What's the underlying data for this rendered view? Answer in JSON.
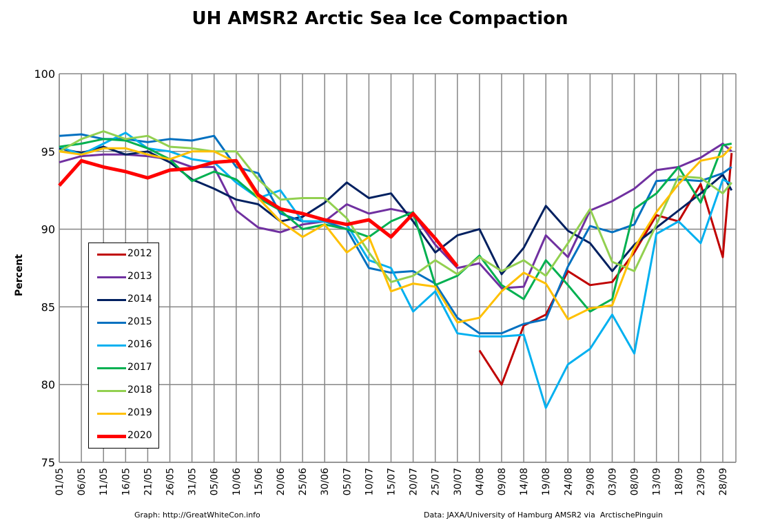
{
  "chart_data": {
    "type": "line",
    "title": "UH AMSR2 Arctic Sea Ice Compaction",
    "ylabel": "Percent",
    "xlabel": "",
    "ylim": [
      75,
      100
    ],
    "yticks": [
      75,
      80,
      85,
      90,
      95,
      100
    ],
    "xticks": [
      "01/05",
      "06/05",
      "11/05",
      "16/05",
      "21/05",
      "26/05",
      "31/05",
      "05/06",
      "10/06",
      "15/06",
      "20/06",
      "25/06",
      "30/06",
      "05/07",
      "10/07",
      "15/07",
      "20/07",
      "25/07",
      "30/07",
      "04/08",
      "09/08",
      "14/08",
      "19/08",
      "24/08",
      "29/08",
      "03/09",
      "08/09",
      "13/09",
      "18/09",
      "23/09",
      "28/09"
    ],
    "grid": true,
    "legend_position": "left",
    "x": [
      "01/05",
      "06/05",
      "11/05",
      "16/05",
      "21/05",
      "26/05",
      "31/05",
      "05/06",
      "10/06",
      "15/06",
      "20/06",
      "25/06",
      "30/06",
      "05/07",
      "10/07",
      "15/07",
      "20/07",
      "25/07",
      "30/07",
      "04/08",
      "09/08",
      "14/08",
      "19/08",
      "24/08",
      "29/08",
      "03/09",
      "08/09",
      "13/09",
      "18/09",
      "23/09",
      "28/09",
      "30/09"
    ],
    "series": [
      {
        "name": "2012",
        "color": "#C00000",
        "values": [
          null,
          null,
          null,
          null,
          null,
          null,
          null,
          null,
          null,
          null,
          null,
          null,
          null,
          null,
          null,
          null,
          null,
          null,
          null,
          82.2,
          80.0,
          83.8,
          84.5,
          87.3,
          86.4,
          86.6,
          88.5,
          90.9,
          90.5,
          92.9,
          88.2,
          94.9
        ]
      },
      {
        "name": "2013",
        "color": "#7030A0",
        "values": [
          94.3,
          94.7,
          94.8,
          94.8,
          94.7,
          94.5,
          94.0,
          94.0,
          91.2,
          90.1,
          89.8,
          90.3,
          90.5,
          91.6,
          91.0,
          91.3,
          91.0,
          89.0,
          87.5,
          87.8,
          86.2,
          86.3,
          89.6,
          88.2,
          91.2,
          91.8,
          92.6,
          93.8,
          94.0,
          94.6,
          95.5,
          95.0
        ]
      },
      {
        "name": "2014",
        "color": "#002060",
        "values": [
          95.2,
          94.9,
          95.3,
          94.8,
          95.0,
          94.3,
          93.2,
          92.6,
          91.9,
          91.6,
          90.5,
          90.8,
          91.7,
          93.0,
          92.0,
          92.3,
          90.5,
          88.5,
          89.6,
          90.0,
          87.1,
          88.8,
          91.5,
          89.9,
          89.1,
          87.3,
          89.0,
          90.1,
          91.2,
          92.3,
          93.5,
          92.5
        ]
      },
      {
        "name": "2015",
        "color": "#0070C0",
        "values": [
          96.0,
          96.1,
          95.8,
          95.8,
          95.6,
          95.8,
          95.7,
          96.0,
          94.0,
          93.6,
          91.0,
          90.5,
          90.5,
          90.0,
          87.5,
          87.2,
          87.3,
          86.5,
          84.3,
          83.3,
          83.3,
          83.9,
          84.2,
          87.6,
          90.2,
          89.8,
          90.3,
          93.1,
          93.2,
          93.1,
          93.6,
          94.0
        ]
      },
      {
        "name": "2016",
        "color": "#00B0F0",
        "values": [
          95.3,
          94.8,
          95.5,
          96.2,
          95.2,
          95.0,
          94.5,
          94.3,
          93.0,
          92.0,
          92.5,
          90.5,
          90.5,
          90.3,
          88.0,
          87.5,
          84.7,
          86.0,
          83.3,
          83.1,
          83.1,
          83.2,
          78.5,
          81.3,
          82.3,
          84.5,
          82.0,
          89.7,
          90.5,
          89.1,
          93.2,
          92.9
        ]
      },
      {
        "name": "2017",
        "color": "#00B050",
        "values": [
          95.3,
          95.5,
          95.8,
          95.7,
          95.2,
          94.5,
          93.1,
          93.7,
          93.2,
          92.0,
          91.2,
          90.0,
          90.3,
          90.0,
          89.5,
          90.5,
          91.1,
          86.4,
          87.0,
          88.3,
          86.4,
          85.5,
          88.0,
          86.4,
          84.7,
          85.5,
          91.3,
          92.3,
          94.0,
          91.7,
          95.4,
          95.5
        ]
      },
      {
        "name": "2018",
        "color": "#92D050",
        "values": [
          95.0,
          95.8,
          96.3,
          95.8,
          96.0,
          95.3,
          95.2,
          95.0,
          95.0,
          93.2,
          91.9,
          92.0,
          92.0,
          90.7,
          88.5,
          86.6,
          87.0,
          88.0,
          87.1,
          88.2,
          87.3,
          88.0,
          87.0,
          89.1,
          91.3,
          87.9,
          87.3,
          90.3,
          93.4,
          93.3,
          92.3,
          93.0
        ]
      },
      {
        "name": "2019",
        "color": "#FFC000",
        "values": [
          95.0,
          94.8,
          95.2,
          95.2,
          94.8,
          94.5,
          95.0,
          95.0,
          94.3,
          92.0,
          90.5,
          89.5,
          90.3,
          88.5,
          89.5,
          86.0,
          86.5,
          86.3,
          84.0,
          84.3,
          86.0,
          87.2,
          86.5,
          84.2,
          84.9,
          85.1,
          88.8,
          91.1,
          92.9,
          94.4,
          94.7,
          95.3
        ]
      },
      {
        "name": "2020",
        "color": "#FF0000",
        "values": [
          92.8,
          94.4,
          94.0,
          93.7,
          93.3,
          93.8,
          93.9,
          94.3,
          94.4,
          92.2,
          91.3,
          91.0,
          90.6,
          90.3,
          90.6,
          89.5,
          91.0,
          89.4,
          87.6,
          null,
          null,
          null,
          null,
          null,
          null,
          null,
          null,
          null,
          null,
          null,
          null,
          null
        ]
      }
    ]
  },
  "footer": {
    "left": "Graph: http://GreatWhiteCon.info",
    "right": "Data: JAXA/University of Hamburg AMSR2 via  ArctischePinguin"
  }
}
